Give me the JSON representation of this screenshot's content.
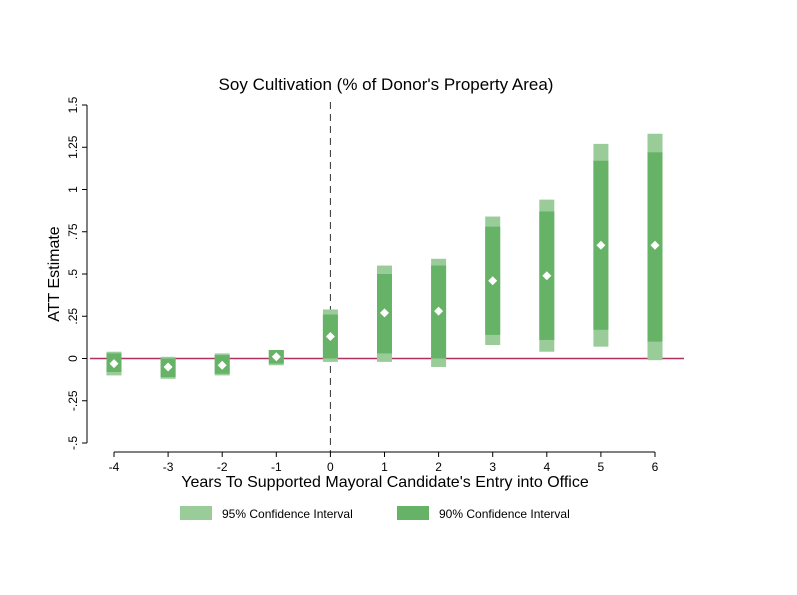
{
  "chart_data": {
    "type": "coefficient-interval",
    "title": "Soy Cultivation (% of Donor's Property Area)",
    "xlabel": "Years To Supported Mayoral Candidate's Entry into Office",
    "ylabel": "ATT Estimate",
    "x_ticks": [
      "-4",
      "-3",
      "-2",
      "-1",
      "0",
      "1",
      "2",
      "3",
      "4",
      "5",
      "6"
    ],
    "y_ticks": [
      "-.5",
      "-.25",
      "0",
      ".25",
      ".5",
      ".75",
      "1",
      "1.25",
      "1.5"
    ],
    "xlim": [
      -4,
      6
    ],
    "ylim": [
      -0.5,
      1.5
    ],
    "reference_lines": {
      "horizontal_y": 0,
      "vertical_dashed_x": 0
    },
    "x": [
      -4,
      -3,
      -2,
      -1,
      0,
      1,
      2,
      3,
      4,
      5,
      6
    ],
    "estimate": [
      -0.03,
      -0.05,
      -0.04,
      0.01,
      0.13,
      0.27,
      0.28,
      0.46,
      0.49,
      0.67,
      0.67
    ],
    "ci95_low": [
      -0.1,
      -0.12,
      -0.1,
      -0.04,
      -0.02,
      -0.02,
      -0.05,
      0.08,
      0.04,
      0.07,
      -0.01
    ],
    "ci95_high": [
      0.04,
      0.01,
      0.03,
      0.05,
      0.29,
      0.55,
      0.59,
      0.84,
      0.94,
      1.27,
      1.33
    ],
    "ci90_low": [
      -0.08,
      -0.11,
      -0.09,
      -0.03,
      0.0,
      0.03,
      0.0,
      0.14,
      0.11,
      0.17,
      0.1
    ],
    "ci90_high": [
      0.03,
      0.0,
      0.02,
      0.05,
      0.26,
      0.5,
      0.55,
      0.78,
      0.87,
      1.17,
      1.22
    ],
    "legend": {
      "position": "bottom",
      "items": [
        "95% Confidence Interval",
        "90% Confidence Interval"
      ]
    },
    "colors": {
      "ci95": "#99cc99",
      "ci90": "#66b266",
      "marker": "#ffffff",
      "zero_line": "#b03060",
      "axis": "#000000"
    },
    "grid": false
  }
}
